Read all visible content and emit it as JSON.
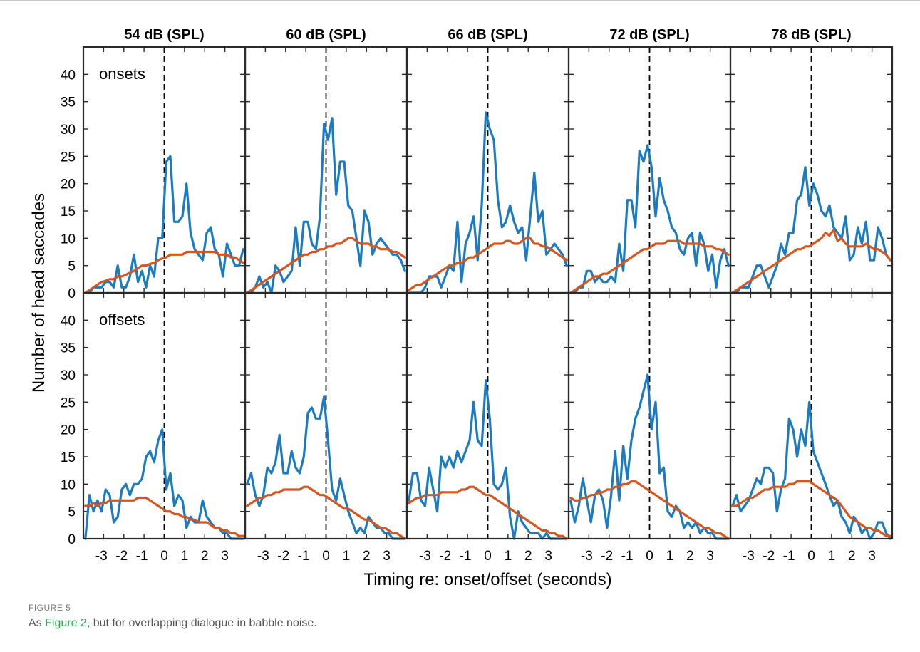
{
  "caption": {
    "figure_label": "FIGURE 5",
    "text_before": "As ",
    "link_text": "Figure 2",
    "text_after": ", but for overlapping dialogue in babble noise."
  },
  "colors": {
    "series1": "#1a7ac2",
    "series2": "#d6561f",
    "axis": "#2a2a2a"
  },
  "chart_data": {
    "type": "line",
    "xlabel": "Timing re: onset/offset (seconds)",
    "ylabel": "Number of head saccades",
    "xlim": [
      -4,
      4
    ],
    "ylim": [
      0,
      45
    ],
    "xticks": [
      -3,
      -2,
      -1,
      0,
      1,
      2,
      3
    ],
    "yticks": [
      0,
      5,
      10,
      15,
      20,
      25,
      30,
      35,
      40
    ],
    "x": [
      -3.9,
      -3.7,
      -3.5,
      -3.3,
      -3.1,
      -2.9,
      -2.7,
      -2.5,
      -2.3,
      -2.1,
      -1.9,
      -1.7,
      -1.5,
      -1.3,
      -1.1,
      -0.9,
      -0.7,
      -0.5,
      -0.3,
      -0.1,
      0.1,
      0.3,
      0.5,
      0.7,
      0.9,
      1.1,
      1.3,
      1.5,
      1.7,
      1.9,
      2.1,
      2.3,
      2.5,
      2.7,
      2.9,
      3.1,
      3.3,
      3.5,
      3.7,
      3.9
    ],
    "column_titles": [
      "54 dB (SPL)",
      "60 dB (SPL)",
      "66 dB (SPL)",
      "72 dB (SPL)",
      "78 dB (SPL)"
    ],
    "row_labels": [
      "onsets",
      "offsets"
    ],
    "vline_x": 0,
    "panels": [
      {
        "row": 0,
        "col": 0,
        "series": [
          {
            "values": [
              0,
              0,
              1,
              1,
              1,
              2,
              2,
              1,
              5,
              1,
              1,
              3,
              7,
              2,
              4,
              1,
              5,
              3,
              10,
              10,
              24,
              25,
              13,
              13,
              14,
              20,
              11,
              8,
              7,
              6,
              11,
              12,
              8,
              7,
              3,
              9,
              7,
              5,
              5,
              8
            ]
          },
          {
            "values": [
              0,
              0.5,
              1,
              1.5,
              2,
              2.2,
              2.5,
              2.5,
              3,
              3,
              3.3,
              3.7,
              4,
              4.5,
              5,
              5,
              5.3,
              5.5,
              6,
              6.3,
              6.5,
              7,
              7,
              7,
              7,
              7.5,
              7.5,
              7.5,
              7.5,
              7.5,
              7.5,
              7.5,
              7.5,
              7,
              7,
              7,
              6.5,
              6.5,
              6,
              5.5
            ]
          }
        ]
      },
      {
        "row": 0,
        "col": 1,
        "series": [
          {
            "values": [
              0,
              0,
              1,
              3,
              1,
              2,
              0,
              5,
              4,
              2,
              3,
              4,
              12,
              5,
              13,
              13,
              9,
              8,
              14,
              31,
              28,
              32,
              18,
              24,
              24,
              16,
              15,
              10,
              5,
              15,
              13,
              7,
              9,
              10,
              9,
              8,
              7,
              7,
              6,
              4
            ]
          },
          {
            "values": [
              0,
              0.5,
              1,
              1.5,
              2,
              2.5,
              3,
              3.5,
              4,
              4.5,
              5,
              5.5,
              6,
              6.5,
              7,
              7,
              7.5,
              7.5,
              8,
              8,
              8.5,
              8.5,
              9,
              9,
              9.5,
              10,
              10,
              9.5,
              9,
              9,
              9,
              8.5,
              8.5,
              8,
              8,
              8,
              7.5,
              7.5,
              7,
              6.5
            ]
          }
        ]
      },
      {
        "row": 0,
        "col": 2,
        "series": [
          {
            "values": [
              0,
              0,
              0,
              0,
              1,
              3,
              3,
              3,
              1,
              3,
              5,
              4,
              13,
              2,
              9,
              11,
              14,
              6,
              16,
              33,
              30,
              28,
              17,
              12,
              13,
              16,
              13,
              11,
              12,
              6,
              14,
              22,
              13,
              15,
              7,
              8,
              9,
              8,
              7,
              5
            ]
          },
          {
            "values": [
              0.5,
              1,
              1.5,
              1.5,
              2,
              2.5,
              3,
              3.5,
              4,
              4.5,
              5,
              5,
              5.5,
              5.5,
              6,
              6.5,
              6.5,
              7,
              7.5,
              8,
              8.5,
              9,
              9,
              9,
              9.5,
              9.5,
              9,
              9,
              9.5,
              10,
              10,
              9,
              9,
              8.5,
              8.5,
              8,
              7.5,
              7,
              6.5,
              6
            ]
          }
        ]
      },
      {
        "row": 0,
        "col": 3,
        "series": [
          {
            "values": [
              0,
              0,
              1,
              1,
              4,
              4,
              2,
              3,
              2,
              2,
              3,
              2,
              9,
              4,
              17,
              17,
              12,
              26,
              24,
              27,
              23,
              14,
              21,
              17,
              15,
              12,
              11,
              8,
              7,
              10,
              11,
              5,
              11,
              9,
              4,
              7,
              1,
              6,
              8,
              5
            ]
          },
          {
            "values": [
              0,
              0.5,
              1,
              1.5,
              2,
              2.5,
              3,
              3,
              3.5,
              3.5,
              4,
              4.5,
              5,
              5.5,
              6,
              6.5,
              7,
              7.5,
              8,
              8,
              8.5,
              9,
              9,
              9,
              9.5,
              9.5,
              9.5,
              9.5,
              9,
              9,
              9,
              9,
              9,
              8.5,
              8.5,
              8.5,
              8,
              8,
              7.5,
              7
            ]
          }
        ]
      },
      {
        "row": 0,
        "col": 4,
        "series": [
          {
            "values": [
              0,
              0,
              1,
              1,
              1,
              3,
              5,
              5,
              3,
              1,
              3,
              5,
              9,
              7,
              11,
              11,
              17,
              18,
              23,
              16,
              20,
              18,
              15,
              14,
              16,
              12,
              11,
              10,
              14,
              6,
              7,
              12,
              9,
              13,
              6,
              6,
              12,
              10,
              7,
              6
            ]
          },
          {
            "values": [
              0,
              0.5,
              1,
              1.5,
              2,
              2.5,
              3,
              3.5,
              4,
              4.5,
              5,
              5.5,
              6,
              6.5,
              7,
              7.5,
              8,
              8,
              8.5,
              8.5,
              9,
              9.5,
              10,
              11,
              10.5,
              11.5,
              9.5,
              10,
              9,
              8.5,
              8.5,
              8.5,
              8.5,
              9,
              8.5,
              8,
              8,
              7.5,
              7,
              6
            ]
          }
        ]
      },
      {
        "row": 1,
        "col": 0,
        "series": [
          {
            "values": [
              0,
              8,
              5,
              7,
              5,
              9,
              8,
              3,
              4,
              9,
              10,
              8,
              10,
              10,
              11,
              15,
              16,
              14,
              18,
              20,
              9,
              12,
              6,
              8,
              7,
              2,
              4,
              3,
              3,
              7,
              4,
              3,
              2,
              2,
              1,
              1,
              0,
              0,
              0,
              0
            ]
          },
          {
            "values": [
              6,
              6,
              6.5,
              6,
              6.5,
              6.5,
              7,
              7,
              7,
              7,
              7,
              7,
              7,
              7.5,
              7.5,
              7.5,
              7,
              6.5,
              6,
              5.5,
              5,
              5,
              4.5,
              4.5,
              4,
              4,
              3.5,
              3.5,
              3,
              3,
              3,
              2.5,
              2,
              2,
              1.5,
              1.5,
              1,
              1,
              0.5,
              0.5
            ]
          }
        ]
      },
      {
        "row": 1,
        "col": 1,
        "series": [
          {
            "values": [
              10,
              12,
              8,
              6,
              8,
              13,
              12,
              14,
              19,
              12,
              12,
              16,
              13,
              12,
              15,
              23,
              24,
              22,
              22,
              26,
              18,
              9,
              7,
              11,
              8,
              5,
              3,
              1,
              2,
              1,
              4,
              3,
              2,
              2,
              1,
              1,
              0,
              0,
              0,
              0
            ]
          },
          {
            "values": [
              6,
              6.5,
              7,
              7.5,
              7.5,
              8,
              8,
              8.5,
              8.5,
              9,
              9,
              9,
              9,
              9,
              9.5,
              9.5,
              9,
              8.5,
              8,
              8,
              7.5,
              7,
              6.5,
              6,
              5.5,
              5.5,
              5,
              4.5,
              4,
              3.5,
              3.5,
              3,
              2.5,
              2,
              2,
              1.5,
              1,
              1,
              0.5,
              0
            ]
          }
        ]
      },
      {
        "row": 1,
        "col": 2,
        "series": [
          {
            "values": [
              7,
              12,
              12,
              7,
              6,
              13,
              9,
              5,
              15,
              13,
              15,
              13,
              16,
              14,
              16,
              18,
              25,
              18,
              17,
              29,
              22,
              10,
              9,
              10,
              13,
              4,
              0,
              5,
              3,
              2,
              1,
              1,
              1,
              0,
              1,
              0,
              0,
              0,
              0,
              0
            ]
          },
          {
            "values": [
              6.5,
              7,
              7.5,
              7.5,
              8,
              8,
              8,
              8,
              8.5,
              8.5,
              8.5,
              8.5,
              8.5,
              9,
              9,
              9.5,
              9.5,
              9,
              8.5,
              8,
              8,
              7.5,
              7,
              6.5,
              6,
              5.5,
              5,
              4.5,
              4,
              3.5,
              3,
              2.5,
              2,
              1.5,
              1.5,
              1,
              1,
              0.5,
              0.5,
              0
            ]
          }
        ]
      },
      {
        "row": 1,
        "col": 3,
        "series": [
          {
            "values": [
              7,
              3,
              6,
              11,
              7,
              3,
              8,
              9,
              7,
              2,
              8,
              16,
              7,
              17,
              11,
              18,
              22,
              24,
              27,
              30,
              20,
              25,
              12,
              13,
              5,
              4,
              6,
              5,
              2,
              3,
              2,
              3,
              1,
              2,
              1,
              1,
              0,
              0,
              0,
              0
            ]
          },
          {
            "values": [
              7.5,
              7,
              7,
              7.5,
              7.5,
              8,
              8,
              8.5,
              8.5,
              9,
              9,
              9.5,
              9.5,
              10,
              10,
              10.5,
              10.5,
              10,
              9.5,
              9,
              8.5,
              8,
              7.5,
              7,
              6.5,
              6,
              5.5,
              5,
              4.5,
              4,
              3.5,
              3,
              2.5,
              2,
              2,
              1.5,
              1,
              1,
              0.5,
              0
            ]
          }
        ]
      },
      {
        "row": 1,
        "col": 4,
        "series": [
          {
            "values": [
              6,
              8,
              5,
              6,
              7,
              9,
              11,
              10,
              13,
              13,
              12,
              5,
              9,
              11,
              22,
              20,
              15,
              20,
              17,
              25,
              16,
              14,
              12,
              10,
              8,
              6,
              7,
              4,
              3,
              1,
              4,
              3,
              1,
              2,
              0,
              1,
              3,
              3,
              1,
              0
            ]
          },
          {
            "values": [
              6,
              6,
              6.5,
              7,
              7.5,
              7.5,
              8,
              8.5,
              9,
              9,
              9.5,
              9.5,
              9.5,
              9.5,
              10,
              10,
              10.5,
              10.5,
              10.5,
              10.5,
              10,
              9.5,
              9,
              8.5,
              8,
              7.5,
              7,
              6,
              5,
              4,
              3.5,
              3,
              2.5,
              2,
              2,
              1.5,
              1.5,
              1,
              0.5,
              0.5
            ]
          }
        ]
      }
    ]
  }
}
